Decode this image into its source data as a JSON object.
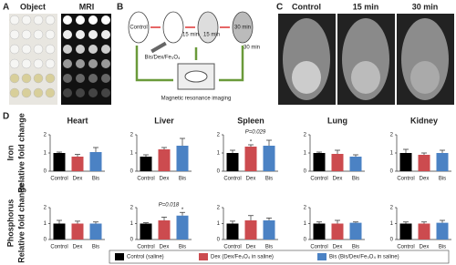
{
  "figure": {
    "panels": [
      {
        "letter": "A",
        "labels": [
          "Object",
          "MRI"
        ]
      },
      {
        "letter": "B",
        "labels": [
          "Control",
          "15 min",
          "30 min",
          "Bis/Dex/Fe₃O₄",
          "15 min",
          "30 min",
          "Magnetic resonance imaging"
        ]
      },
      {
        "letter": "C",
        "labels": [
          "Control",
          "15 min",
          "30 min"
        ]
      },
      {
        "letter": "D",
        "labels": []
      }
    ],
    "row_labels": [
      {
        "element": "Iron",
        "measure": "Relative fold change"
      },
      {
        "element": "Phosphorus",
        "measure": "Relative fold change"
      }
    ],
    "legend": [
      {
        "label": "Control (saline)",
        "color": "#000000"
      },
      {
        "label": "Dex (Dex/Fe₃O₄ in saline)",
        "color": "#cc4b4f"
      },
      {
        "label": "Bis (Bis/Dex/Fe₃O₄ in saline)",
        "color": "#4b82c4"
      }
    ]
  },
  "chart_data": [
    {
      "type": "bar",
      "title": "Heart",
      "categories": [
        "Control",
        "Dex",
        "Bis"
      ],
      "values": [
        1.0,
        0.8,
        1.05
      ],
      "errors": [
        0.05,
        0.12,
        0.25
      ],
      "colors": [
        "#000000",
        "#cc4b4f",
        "#4b82c4"
      ],
      "ylim": [
        0,
        2
      ],
      "yticks": [
        0,
        1,
        2
      ]
    },
    {
      "type": "bar",
      "title": "Liver",
      "categories": [
        "Control",
        "Dex",
        "Bis"
      ],
      "values": [
        0.8,
        1.2,
        1.4
      ],
      "errors": [
        0.1,
        0.1,
        0.4
      ],
      "colors": [
        "#000000",
        "#cc4b4f",
        "#4b82c4"
      ],
      "ylim": [
        0,
        2
      ],
      "yticks": [
        0,
        1,
        2
      ]
    },
    {
      "type": "bar",
      "title": "Spleen",
      "categories": [
        "Control",
        "Dex",
        "Bis"
      ],
      "values": [
        1.0,
        1.35,
        1.4
      ],
      "errors": [
        0.15,
        0.1,
        0.3
      ],
      "colors": [
        "#000000",
        "#cc4b4f",
        "#4b82c4"
      ],
      "ylim": [
        0,
        2
      ],
      "yticks": [
        0,
        1,
        2
      ],
      "annotation": "P=0.029",
      "marker": "*",
      "marker_index": 1
    },
    {
      "type": "bar",
      "title": "Lung",
      "categories": [
        "Control",
        "Dex",
        "Bis"
      ],
      "values": [
        1.0,
        0.95,
        0.8
      ],
      "errors": [
        0.05,
        0.2,
        0.1
      ],
      "colors": [
        "#000000",
        "#cc4b4f",
        "#4b82c4"
      ],
      "ylim": [
        0,
        2
      ],
      "yticks": [
        0,
        1,
        2
      ]
    },
    {
      "type": "bar",
      "title": "Kidney",
      "categories": [
        "Control",
        "Dex",
        "Bis"
      ],
      "values": [
        1.0,
        0.9,
        1.0
      ],
      "errors": [
        0.2,
        0.1,
        0.15
      ],
      "colors": [
        "#000000",
        "#cc4b4f",
        "#4b82c4"
      ],
      "ylim": [
        0,
        2
      ],
      "yticks": [
        0,
        1,
        2
      ]
    },
    {
      "type": "bar",
      "categories": [
        "Control",
        "Dex",
        "Bis"
      ],
      "values": [
        1.0,
        1.0,
        1.0
      ],
      "errors": [
        0.2,
        0.15,
        0.1
      ],
      "colors": [
        "#000000",
        "#cc4b4f",
        "#4b82c4"
      ],
      "ylim": [
        0,
        2
      ],
      "yticks": [
        0,
        1,
        2
      ]
    },
    {
      "type": "bar",
      "categories": [
        "Control",
        "Dex",
        "Bis"
      ],
      "values": [
        1.0,
        1.2,
        1.5
      ],
      "errors": [
        0.05,
        0.2,
        0.2
      ],
      "colors": [
        "#000000",
        "#cc4b4f",
        "#4b82c4"
      ],
      "ylim": [
        0,
        2
      ],
      "yticks": [
        0,
        1,
        2
      ],
      "annotation": "P=0.018",
      "marker": "*",
      "marker_index": 2
    },
    {
      "type": "bar",
      "categories": [
        "Control",
        "Dex",
        "Bis"
      ],
      "values": [
        1.0,
        1.2,
        1.2
      ],
      "errors": [
        0.15,
        0.3,
        0.15
      ],
      "colors": [
        "#000000",
        "#cc4b4f",
        "#4b82c4"
      ],
      "ylim": [
        0,
        2
      ],
      "yticks": [
        0,
        1,
        2
      ]
    },
    {
      "type": "bar",
      "categories": [
        "Control",
        "Dex",
        "Bis"
      ],
      "values": [
        1.0,
        1.0,
        1.05
      ],
      "errors": [
        0.1,
        0.2,
        0.05
      ],
      "colors": [
        "#000000",
        "#cc4b4f",
        "#4b82c4"
      ],
      "ylim": [
        0,
        2
      ],
      "yticks": [
        0,
        1,
        2
      ]
    },
    {
      "type": "bar",
      "categories": [
        "Control",
        "Dex",
        "Bis"
      ],
      "values": [
        1.0,
        1.0,
        1.05
      ],
      "errors": [
        0.1,
        0.1,
        0.15
      ],
      "colors": [
        "#000000",
        "#cc4b4f",
        "#4b82c4"
      ],
      "ylim": [
        0,
        2
      ],
      "yticks": [
        0,
        1,
        2
      ]
    }
  ]
}
